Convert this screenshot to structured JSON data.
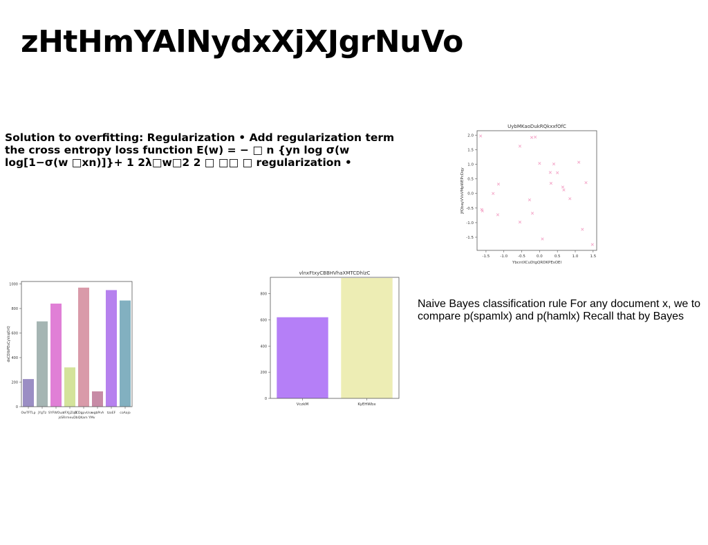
{
  "title": "zHtHmYAlNydxXjXJgrNuVo",
  "paragraphs": [
    "Solution to overfitting: Regularization • Add regularization term the cross entropy loss function E(w) = − □ n {yn log σ(w log[1−σ(w □xn)]}+ 1 2λ□w□2 2 □ □□ □ regularization •",
    "Naive Bayes classification rule For any document x, we to compare p(spamlx) and p(hamlx) Recall that by Bayes"
  ],
  "chart_data": [
    {
      "type": "scatter",
      "title": "UybMKaoDukRQkxxfOfC",
      "xlabel": "YbcntXCuDtgQRDKPEsOEl",
      "ylabel": "JfQbayVVsVMpWEPcDqy",
      "xlim": [
        -1.75,
        1.6
      ],
      "ylim": [
        -1.95,
        2.15
      ],
      "xticks": [
        -1.5,
        -1.0,
        -0.5,
        0.0,
        0.5,
        1.0,
        1.5
      ],
      "yticks": [
        -1.5,
        -1.0,
        -0.5,
        0.0,
        0.5,
        1.0,
        1.5,
        2.0
      ],
      "marker": "x",
      "color": "#f4a6c8",
      "points": [
        [
          -1.65,
          1.97
        ],
        [
          -1.62,
          -0.55
        ],
        [
          -1.6,
          -0.6
        ],
        [
          -1.3,
          0.0
        ],
        [
          -1.15,
          0.32
        ],
        [
          -1.17,
          -0.73
        ],
        [
          -0.55,
          1.62
        ],
        [
          -0.55,
          -0.98
        ],
        [
          -0.22,
          1.92
        ],
        [
          -0.12,
          1.93
        ],
        [
          -0.28,
          -0.22
        ],
        [
          -0.2,
          -0.68
        ],
        [
          0.0,
          1.03
        ],
        [
          0.08,
          -1.56
        ],
        [
          0.3,
          0.72
        ],
        [
          0.32,
          0.35
        ],
        [
          0.4,
          1.01
        ],
        [
          0.5,
          0.71
        ],
        [
          0.65,
          0.22
        ],
        [
          0.68,
          0.12
        ],
        [
          0.85,
          -0.18
        ],
        [
          1.1,
          1.07
        ],
        [
          1.2,
          -1.23
        ],
        [
          1.3,
          0.37
        ],
        [
          1.48,
          -1.75
        ]
      ]
    },
    {
      "type": "bar",
      "title": "",
      "xlabel": "",
      "ylabel": "dsCDlbPEsCyVcqOrQ",
      "ylim": [
        0,
        1020
      ],
      "yticks": [
        0,
        200,
        400,
        600,
        800,
        1000
      ],
      "categories": [
        "OwTFTLp",
        "jYgTz",
        "SYFWOua",
        "dFXjjZqD",
        "lCDgpvUsx",
        "wgbPnA",
        "tzoEF",
        "coAajo"
      ],
      "xtick_lines": [
        [
          "OwTFTLp",
          "jYgTz",
          "SYFWOua",
          "dFXjjZqD",
          "lCDgpvUsx",
          "wgbPnA",
          "tzoEF",
          "coAajo"
        ],
        [
          "jsSRrmeuDbQKam YMv"
        ]
      ],
      "values": [
        225,
        695,
        840,
        320,
        970,
        125,
        950,
        865
      ],
      "colors": [
        "#9b8ec4",
        "#a5b5b3",
        "#e07fd6",
        "#d4e39b",
        "#d99aa9",
        "#c78ba6",
        "#b681ee",
        "#82b0c0"
      ]
    },
    {
      "type": "bar",
      "title": "vlnxFtxyCBBHVhaXMTCDhlzC",
      "xlabel": "",
      "ylabel": "",
      "ylim": [
        0,
        925
      ],
      "yticks": [
        0,
        200,
        400,
        600,
        800
      ],
      "categories": [
        "VczkM",
        "KyEHWbx"
      ],
      "values": [
        620,
        920
      ],
      "colors": [
        "#b57ff7",
        "#ededb4"
      ]
    }
  ]
}
